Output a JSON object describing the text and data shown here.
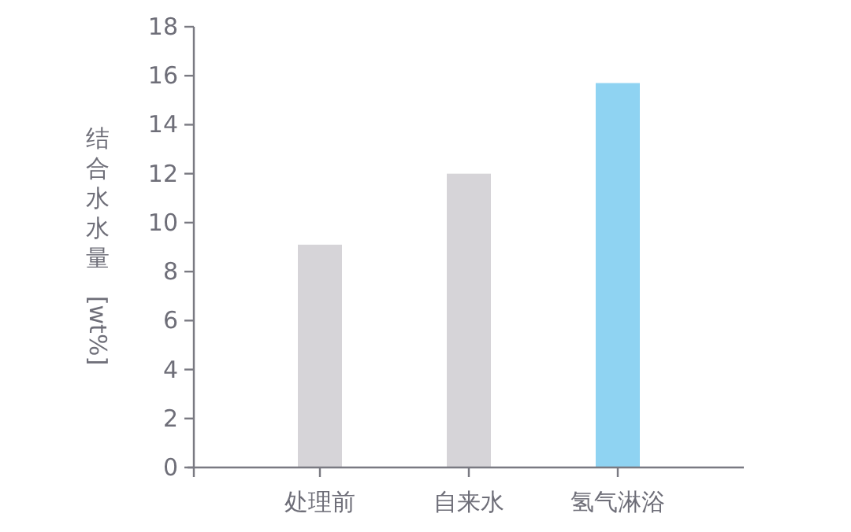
{
  "chart_data": {
    "type": "bar",
    "ylabel": "结合水水量 [wt%]",
    "categories": [
      "处理前",
      "自来水",
      "氢气淋浴"
    ],
    "values": [
      9.1,
      12.0,
      15.7
    ],
    "colors": [
      "#d6d4d8",
      "#d6d4d8",
      "#8fd3f2"
    ],
    "ylim": [
      0,
      18
    ],
    "yticks": [
      0,
      2,
      4,
      6,
      8,
      10,
      12,
      14,
      16,
      18
    ]
  }
}
